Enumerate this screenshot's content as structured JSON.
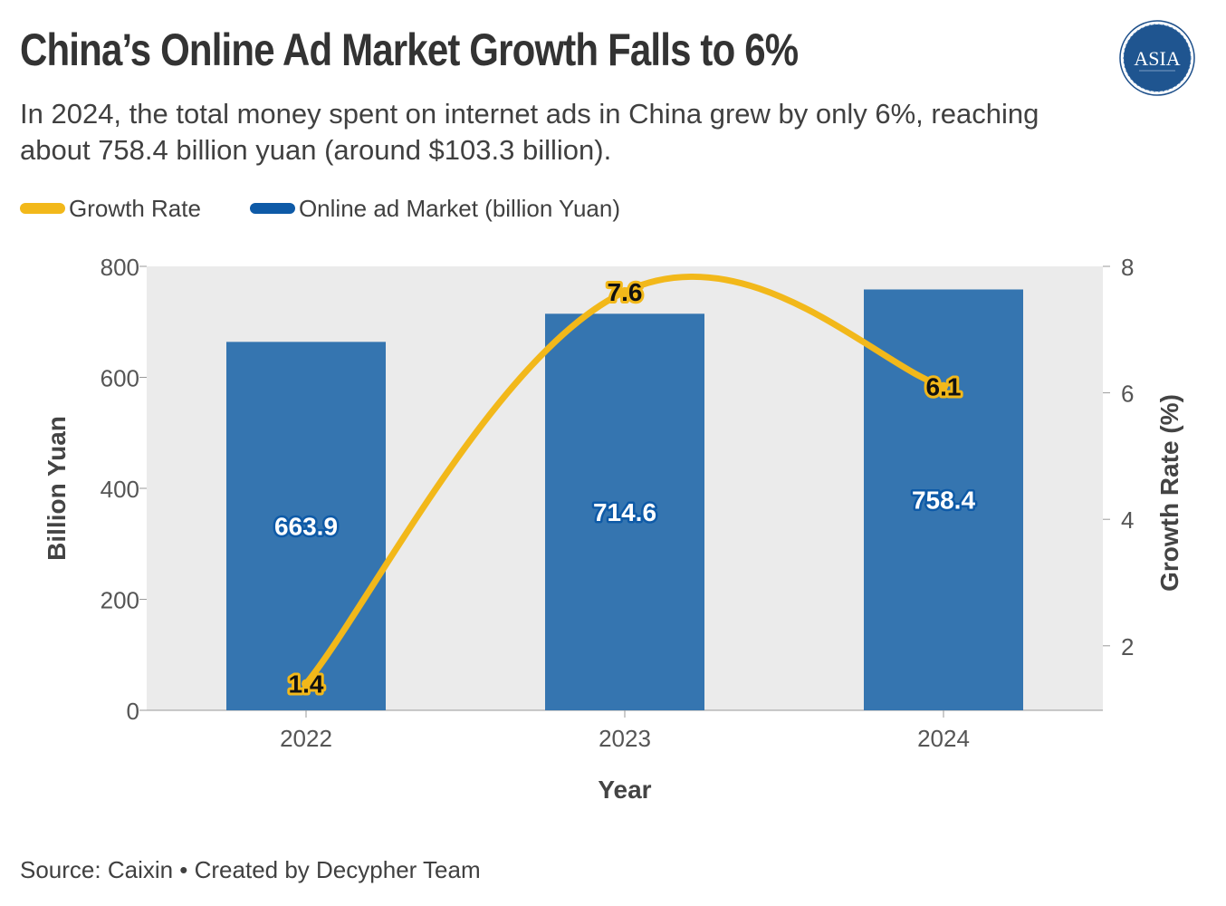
{
  "title": "China’s Online Ad Market Growth Falls to 6%",
  "subtitle": "In 2024, the total money spent on internet ads in China grew by only 6%, reaching about 758.4 billion yuan (around $103.3 billion).",
  "logo": {
    "text": "ASIA",
    "icon": "globe-logo-icon"
  },
  "legend": [
    {
      "label": "Growth Rate",
      "color": "#F2B81A"
    },
    {
      "label": "Online ad Market (billion Yuan)",
      "color": "#0E5AA7"
    }
  ],
  "source": "Source: Caixin • Created by Decypher Team",
  "colors": {
    "bar": "#3575B0",
    "line": "#F2B81A",
    "plot_bg": "#EBEBEB",
    "bar_label_stroke": "#0E5AA7"
  },
  "chart_data": {
    "type": "bar",
    "categories": [
      "2022",
      "2023",
      "2024"
    ],
    "series": [
      {
        "name": "Online ad Market (billion Yuan)",
        "type": "bar",
        "axis": "left",
        "values": [
          663.9,
          714.6,
          758.4
        ],
        "labels": [
          "663.9",
          "714.6",
          "758.4"
        ]
      },
      {
        "name": "Growth Rate",
        "type": "line",
        "axis": "right",
        "values": [
          1.4,
          7.6,
          6.1
        ],
        "labels": [
          "1.4",
          "7.6",
          "6.1"
        ]
      }
    ],
    "xlabel": "Year",
    "ylabel": "Billion Yuan",
    "y2label": "Growth Rate (%)",
    "ylim": [
      0,
      800
    ],
    "yticks": [
      "0",
      "200",
      "400",
      "600",
      "800"
    ],
    "y2lim": [
      0.98,
      8
    ],
    "y2ticks": [
      "2",
      "4",
      "6",
      "8"
    ],
    "grid": false,
    "legend_position": "top-left"
  }
}
